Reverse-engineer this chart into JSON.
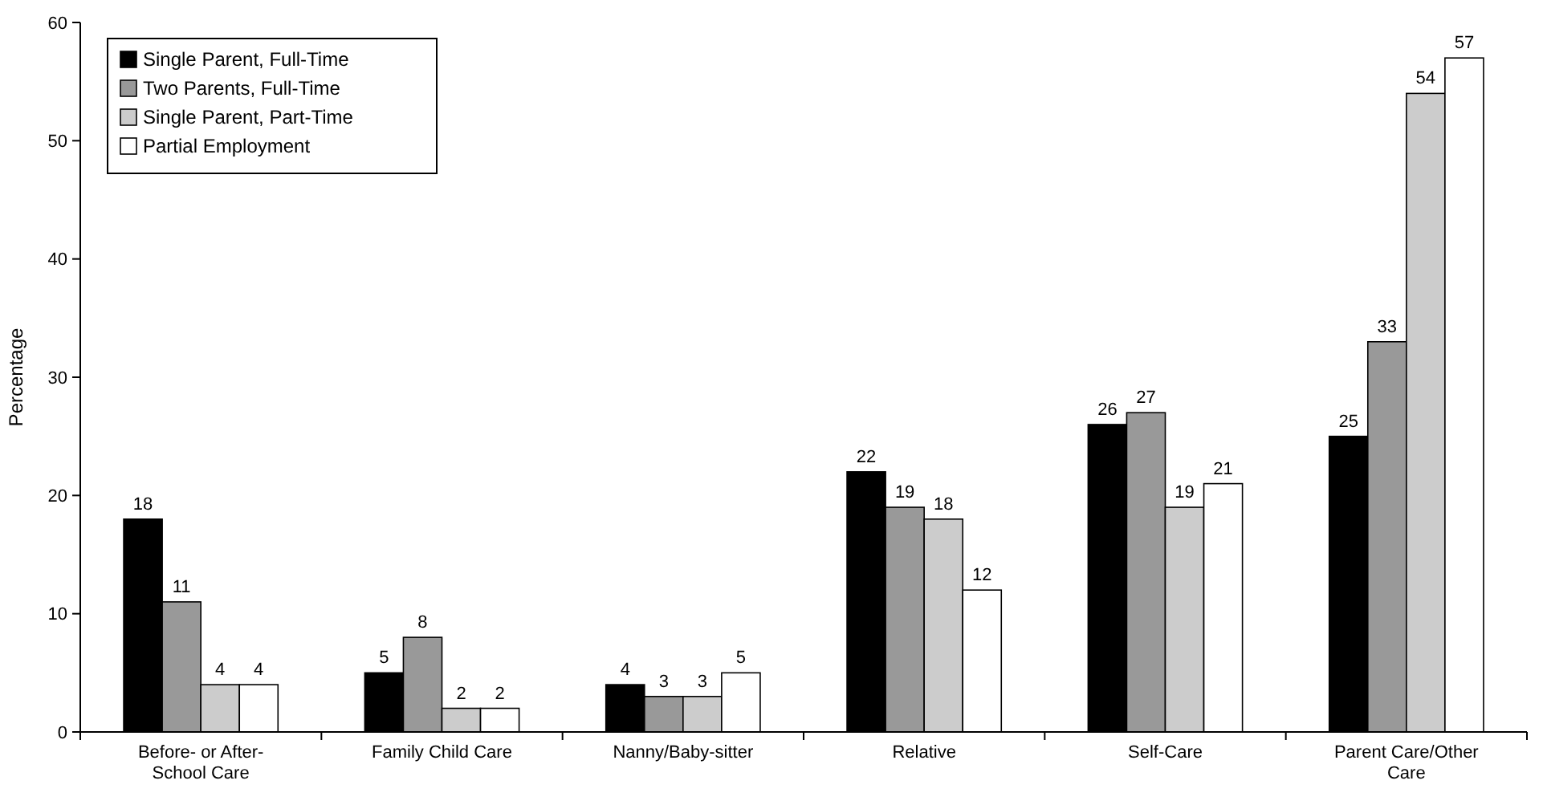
{
  "chart_data": {
    "type": "bar",
    "ylabel": "Percentage",
    "categories": [
      "Before- or After-School Care",
      "Family Child Care",
      "Nanny/Baby-sitter",
      "Relative",
      "Self-Care",
      "Parent Care/Other Care"
    ],
    "series": [
      {
        "name": "Single Parent, Full-Time",
        "color": "#000000",
        "values": [
          18,
          5,
          4,
          22,
          26,
          25
        ]
      },
      {
        "name": "Two Parents, Full-Time",
        "color": "#999999",
        "values": [
          11,
          8,
          3,
          19,
          27,
          33
        ]
      },
      {
        "name": "Single Parent, Part-Time",
        "color": "#cccccc",
        "values": [
          4,
          2,
          3,
          18,
          19,
          54
        ]
      },
      {
        "name": "Partial Employment",
        "color": "#ffffff",
        "values": [
          4,
          2,
          5,
          12,
          21,
          57
        ]
      }
    ],
    "ylim": [
      0,
      60
    ],
    "yticks": [
      0,
      10,
      20,
      30,
      40,
      50,
      60
    ],
    "data_labels": true,
    "legend": "top left",
    "grid": false
  }
}
